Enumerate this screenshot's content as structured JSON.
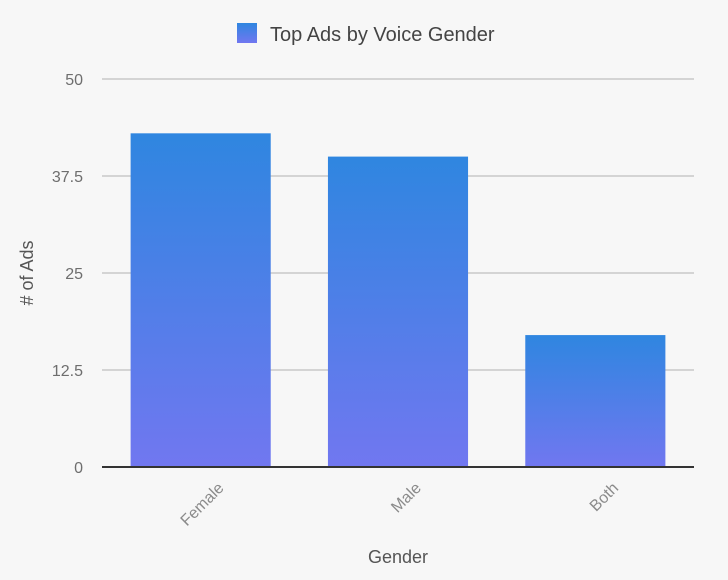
{
  "chart_data": {
    "type": "bar",
    "categories": [
      "Female",
      "Male",
      "Both"
    ],
    "series": [
      {
        "name": "Top Ads by Voice Gender",
        "values": [
          43,
          40,
          17
        ]
      }
    ],
    "xlabel": "Gender",
    "ylabel": "# of Ads",
    "ylim": [
      0,
      50
    ],
    "yticks": [
      "0",
      "12.5",
      "25",
      "37.5",
      "50"
    ],
    "grid": true,
    "legend": "top-center",
    "colors": {
      "bar_top": "#2f86e0",
      "bar_bottom": "#7177f0",
      "grid": "#c8c8c8",
      "axis": "#333333"
    }
  }
}
